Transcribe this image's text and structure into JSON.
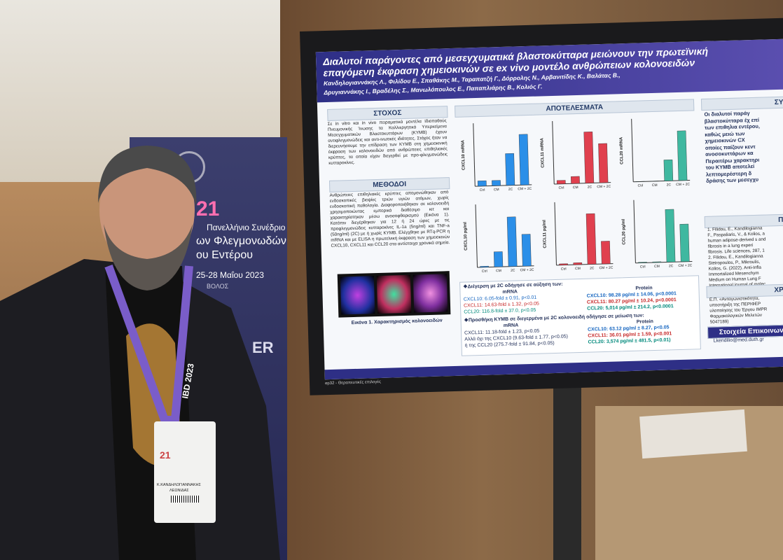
{
  "banner": {
    "number": "21",
    "line1": "Πανελλήνιο Συνέδριο",
    "line2": "ων Φλεγμονωδών",
    "line3": "ου Εντέρου",
    "dates": "25-28 Μαΐου 2023",
    "city": "ΒΟΛΟΣ",
    "side": "ER"
  },
  "lanyard": "IBD 2023",
  "badge": {
    "number": "21",
    "name": "Κ.ΚΑΝΔΗΛΟΓΙΑΝΝΑΚΗΣ",
    "surname": "ΛΕΩΝΙΔΑΣ"
  },
  "poster": {
    "title1": "Διαλυτοί παράγοντες από μεσεγχυματικά βλαστοκύτταρα μειώνουν την πρωτεϊνική",
    "title2": "επαγόμενη έκφραση χημειοκινών σε ex vivo μοντέλο ανθρώπειων κολονοειδών",
    "authors1": "Κανδηλογιαννάκης Λ., Φιλίδου Ε., Σπαθάκης Μ., Ταραπατζή Γ., Δόρρολης Ν., Αρβανιτίδης Κ., Βαλάτας Β.,",
    "authors2": "Δρυγιαννάκης Ι., Βραδέλης Σ., Μανωλόπουλος Ε., Παπαπλιάρης Β., Κολιός Γ.",
    "goal_header": "ΣΤΟΧΟΣ",
    "goal_text": "Σε in vitro και in vivo πειραματικά μοντέλα Ιδιοπαθούς Πνευμονικής Ίνωσης τα Καλλιεργητικά Υπερκείμενα Μεσεγχυματικών Βλαστοκυττάρων (ΚΥΜΒ) έχουν αντιφλεγμονώδεις και αντι-ινωτικές ιδιότητες. Στόχος ήταν να διερευνήσουμε την επίδραση των ΚΥΜΒ στη χημειοκινική έκφραση των κολονοειδών από ανθρώπειες επιθηλιακές κρύπτες, τα οποία είχαν διεγερθεί με προ-φλεγμονώδεις κυτταροκίνες.",
    "methods_header": "ΜΕΘΟΔΟΙ",
    "methods_text": "Ανθρώπειες επιθηλιακές κρύπτες απομονώθηκαν από ενδοσκοπικές βιοψίες τριών υγιών ατόμων, χωρίς ενδοσκοπική παθολογία. Διαφοροποιήθηκαν σε κολονοειδή χρησιμοποιώντας εμπορικά διαθέσιμο κιτ και χαρακτηρίστηκαν μέσω ανοσοφθορισμού (Εικόνα 1). Κατόπιν διεγέρθηκαν για 12 ή 24 ώρες με τις προφλεγμονώδεις κυτταροκίνες IL-1a (5ng/ml) και TNF-a (50ng/ml) (2C) με ή χωρίς ΚΥΜΒ. Ελέγχθηκε με RTq-PCR η mRNA και με ELISA η πρωτεϊνική έκφραση των χημειοκινών CXCL10, CXCL11 και CCL20 στα αντίστοιχα χρονικά σημεία.",
    "figure_caption": "Εικόνα 1. Χαρακτηρισμός κολονοειδών",
    "results_header": "ΑΠΟΤΕΛΕΣΜΑΤΑ",
    "charts": [
      {
        "ylabel": "CXCL10 mRNA",
        "categories": [
          "Ctrl",
          "CM",
          "2C",
          "CM + 2C"
        ],
        "values": [
          1,
          1,
          6.05,
          9.63
        ],
        "ylim": [
          0,
          12
        ],
        "color": "#2b8fe8"
      },
      {
        "ylabel": "CXCL11 mRNA",
        "categories": [
          "Ctrl",
          "CM",
          "2C",
          "CM + 2C"
        ],
        "values": [
          1,
          2,
          14.63,
          11.18
        ],
        "ylim": [
          0,
          18
        ],
        "color": "#e0404e"
      },
      {
        "ylabel": "CCL20 mRNA",
        "categories": [
          "Ctrl",
          "CM",
          "2C",
          "CM + 2C"
        ],
        "values": [
          1,
          1,
          116.8,
          275.7
        ],
        "ylim": [
          0,
          350
        ],
        "color": "#3fb8a0"
      },
      {
        "ylabel": "CXCL10 pg/ml",
        "categories": [
          "Ctrl",
          "CM",
          "2C",
          "CM + 2C"
        ],
        "values": [
          2,
          30,
          98.28,
          63.12
        ],
        "ylim": [
          0,
          125
        ],
        "color": "#2b8fe8"
      },
      {
        "ylabel": "CXCL11 pg/ml",
        "categories": [
          "Ctrl",
          "CM",
          "2C",
          "CM + 2C"
        ],
        "values": [
          2,
          3,
          80.27,
          36.01
        ],
        "ylim": [
          0,
          100
        ],
        "color": "#e0404e"
      },
      {
        "ylabel": "CCL20 pg/ml",
        "categories": [
          "Ctrl",
          "CM",
          "2C",
          "CM + 2C"
        ],
        "values": [
          60,
          60,
          5014,
          3574
        ],
        "ylim": [
          0,
          6000
        ],
        "color": "#3fb8a0"
      }
    ],
    "r1_head": "❖Διέγερση με 2C οδήγησε σε αύξηση των:",
    "mrna": "mRNA",
    "protein": "Protein",
    "r1_mrna": [
      "CXCL10: 6.05-fold ± 0.91, p<0.01",
      "CXCL11: 14.63-fold ± 1.32, p<0.05",
      "CCL20: 116.8-fold ± 37.0, p<0.05"
    ],
    "r1_prot": [
      "CXCL10: 98.28 pg/ml ± 14.06, p<0.0001",
      "CXCL11: 80.27 pg/ml ± 10.24, p<0.0001",
      "CCL20: 5,014 pg/ml ± 214.2, p<0.0001"
    ],
    "r2_head": "❖Προσθήκη ΚΥΜΒ σε διεγερμένα με 2C κολονοειδή οδήγησε σε μείωση των:",
    "r2_mrna": [
      "CXCL11: 11.18-fold ± 1.23, p<0.05",
      "Αλλά όχι της CXCL10 (9.63-fold ± 1.77, p<0.05)",
      "ή της CCL20 (275.7-fold ± 91.84, p<0.05)"
    ],
    "r2_prot": [
      "CXCL10: 63.12 pg/ml ± 8.27, p<0.05",
      "CXCL11: 36.01 pg/ml ± 1.59, p<0.001",
      "CCL20: 3,574 pg/ml ± 481.5, p<0.01)"
    ],
    "concl_header": "ΣΥΜΠ",
    "concl_text": "Οι διαλυτοί παράγ βλαστοκύτταρα έχ επί των επιθηλια εντέρου, καθώς μειώ των χημειοκινών CX οποίες παίζουν κεντ ανοσοκυττάρων κα Περαιτέρω χαρακτηρι του ΚΥΜΒ αποτελεί λεπτομερέστερη δ δράσης των μεσεγχυ",
    "refs_header": "ΠΑΡΑ",
    "refs_text": "1. Filidou, E., Kandilogianna F., Paspaliaris, V., & Kolios, a human adipose-derived s and fibrosis in a lung experi fibrosis. Life sciences, 287, 1 2. Filidou, E., Kandilogianna Steiropoulos, P., Mikroulis, Kolios, G. (2022). Anti-Infla Immortalized Mesenchym Medium on Human Lung F International journal of molec",
    "fund_header": "ΧΡΗΜΑ",
    "fund_text": "Ε.Π. «Ανταγωνιστικότητα, υποστήριξη της ΠΕΡΙΦΕΡ υλοποίησης του Έργου IMPR Φαρμακολογικών Μελετών 5047189)",
    "contact_header": "Στοιχεία Επικοινωνία",
    "contact_email": "Lkendilio@med.duth.gr",
    "footer": "ep32 - Θεραπευτικές επιλογές"
  }
}
